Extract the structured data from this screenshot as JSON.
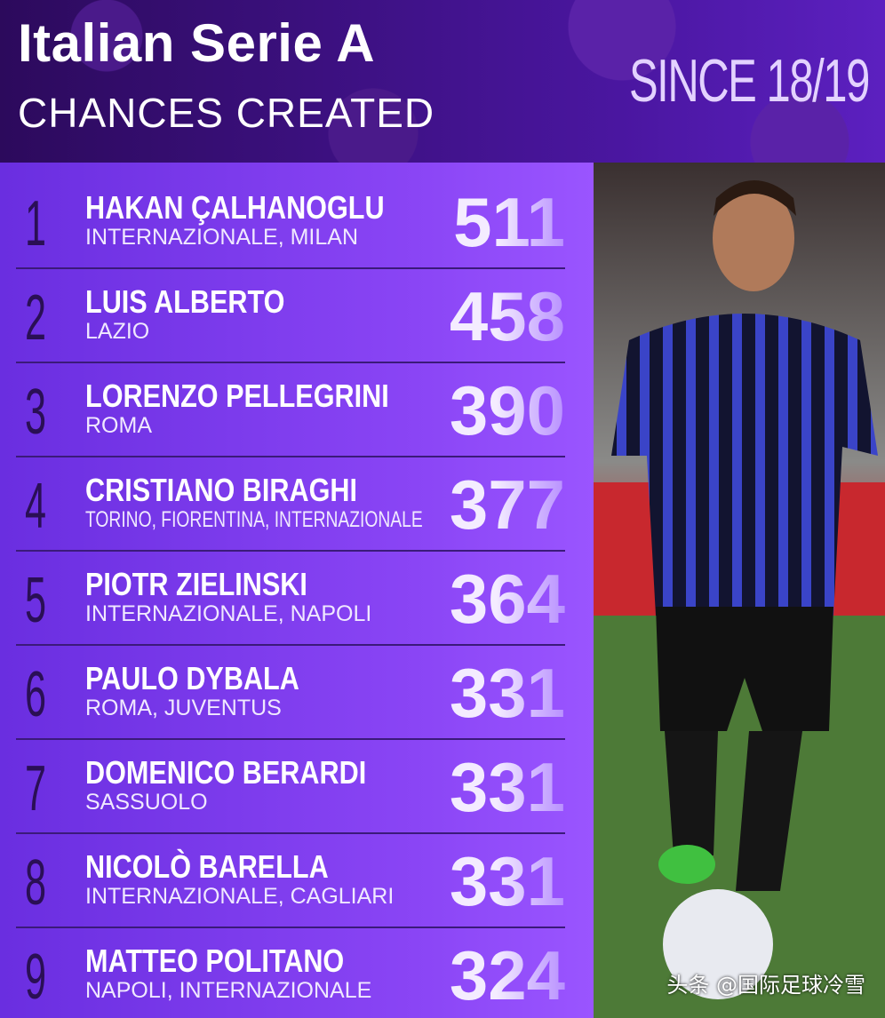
{
  "header": {
    "title": "Italian Serie A",
    "subtitle": "CHANCES CREATED",
    "since": "SINCE 18/19"
  },
  "table": {
    "rows": [
      {
        "rank": 1,
        "name": "HAKAN ÇALHANOGLU",
        "club": "INTERNAZIONALE, MILAN",
        "value": 511
      },
      {
        "rank": 2,
        "name": "LUIS ALBERTO",
        "club": "LAZIO",
        "value": 458
      },
      {
        "rank": 3,
        "name": "LORENZO PELLEGRINI",
        "club": "ROMA",
        "value": 390
      },
      {
        "rank": 4,
        "name": "CRISTIANO BIRAGHI",
        "club": "TORINO, FIORENTINA, INTERNAZIONALE",
        "value": 377
      },
      {
        "rank": 5,
        "name": "PIOTR ZIELINSKI",
        "club": "INTERNAZIONALE, NAPOLI",
        "value": 364
      },
      {
        "rank": 6,
        "name": "PAULO DYBALA",
        "club": "ROMA, JUVENTUS",
        "value": 331
      },
      {
        "rank": 7,
        "name": "DOMENICO BERARDI",
        "club": "SASSUOLO",
        "value": 331
      },
      {
        "rank": 8,
        "name": "NICOLÒ BARELLA",
        "club": "INTERNAZIONALE, CAGLIARI",
        "value": 331
      },
      {
        "rank": 9,
        "name": "MATTEO POLITANO",
        "club": "NAPOLI, INTERNAZIONALE",
        "value": 324
      }
    ]
  },
  "watermark": "头条 @国际足球冷雪"
}
